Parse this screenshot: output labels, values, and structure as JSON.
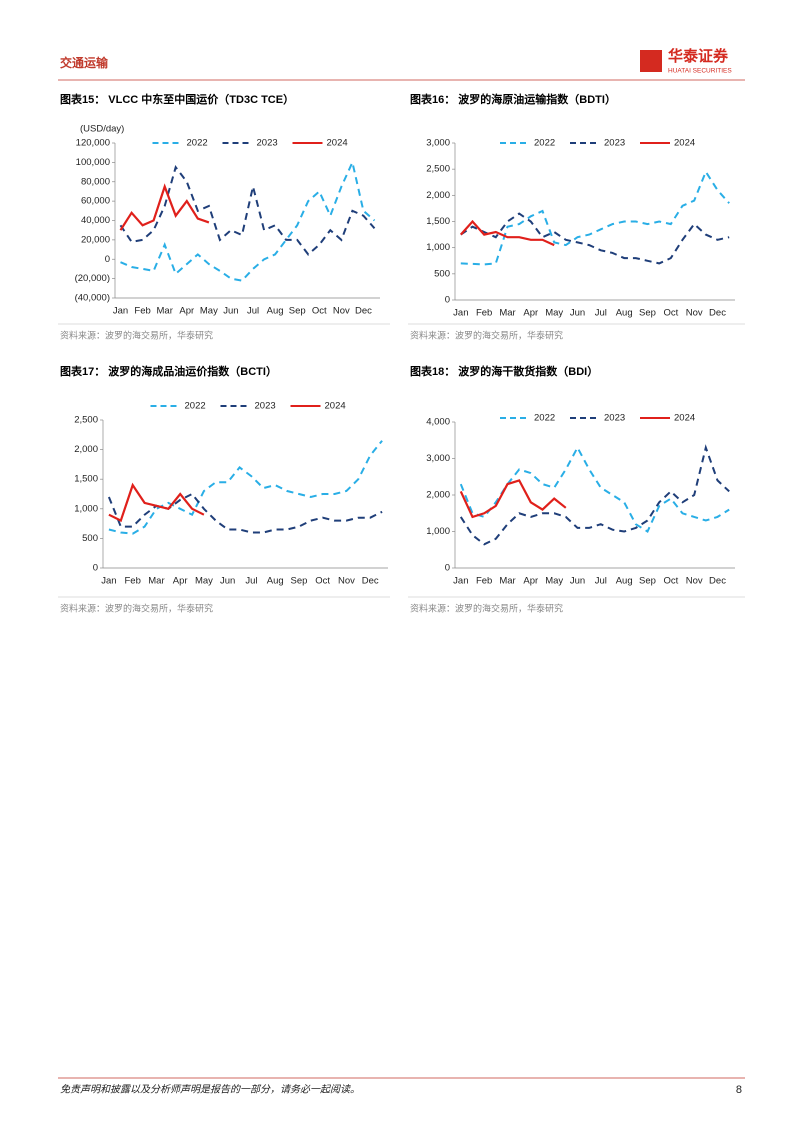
{
  "header": {
    "section": "交通运输",
    "logo": "华泰证券",
    "logo_en": "HUATAI SECURITIES"
  },
  "charts": [
    {
      "type": "line",
      "title": "图表15：  VLCC 中东至中国运价（TD3C TCE）",
      "y_unit": "(USD/day)",
      "source": "资料来源：波罗的海交易所，华泰研究",
      "categories": [
        "Jan",
        null,
        "Feb",
        null,
        "Mar",
        null,
        "Apr",
        null,
        "May",
        null,
        "Jun",
        null,
        "Jul",
        null,
        "Aug",
        null,
        "Sep",
        null,
        "Oct",
        null,
        "Nov",
        null,
        "Dec",
        null
      ],
      "ylim": [
        -40000,
        120000
      ],
      "yticks": [
        {
          "value": -40000,
          "label": "(40,000)"
        },
        {
          "value": -20000,
          "label": "(20,000)"
        },
        0,
        {
          "value": 20000,
          "label": "20,000"
        },
        {
          "value": 40000,
          "label": "40,000"
        },
        {
          "value": 60000,
          "label": "60,000"
        },
        {
          "value": 80000,
          "label": "80,000"
        },
        {
          "value": 100000,
          "label": "100,000"
        },
        {
          "value": 120000,
          "label": "120,000"
        }
      ],
      "series": [
        {
          "name": "2022",
          "color": "#29aee6",
          "dashed": true,
          "values": [
            -3000,
            -8000,
            -10000,
            -12000,
            15000,
            -15000,
            -5000,
            5000,
            -5000,
            -12000,
            -20000,
            -22000,
            -10000,
            0,
            5000,
            20000,
            35000,
            60000,
            70000,
            45000,
            75000,
            100000,
            50000,
            40000
          ]
        },
        {
          "name": "2023",
          "color": "#1f3e79",
          "dashed": true,
          "values": [
            35000,
            18000,
            20000,
            30000,
            55000,
            95000,
            80000,
            50000,
            55000,
            20000,
            30000,
            25000,
            75000,
            30000,
            35000,
            20000,
            20000,
            5000,
            15000,
            30000,
            20000,
            50000,
            45000,
            32000
          ]
        },
        {
          "name": "2024",
          "color": "#e0201b",
          "dashed": false,
          "values": [
            30000,
            48000,
            35000,
            40000,
            75000,
            45000,
            60000,
            42000,
            38000,
            null,
            null,
            null,
            null,
            null,
            null,
            null,
            null,
            null,
            null,
            null,
            null,
            null,
            null,
            null
          ]
        }
      ]
    },
    {
      "type": "line",
      "title": "图表16：  波罗的海原油运输指数（BDTI）",
      "source": "资料来源：波罗的海交易所，华泰研究",
      "categories": [
        "Jan",
        null,
        "Feb",
        null,
        "Mar",
        null,
        "Apr",
        null,
        "May",
        null,
        "Jun",
        null,
        "Jul",
        null,
        "Aug",
        null,
        "Sep",
        null,
        "Oct",
        null,
        "Nov",
        null,
        "Dec",
        null
      ],
      "ylim": [
        0,
        3000
      ],
      "yticks": [
        0,
        500,
        {
          "value": 1000,
          "label": "1,000"
        },
        {
          "value": 1500,
          "label": "1,500"
        },
        {
          "value": 2000,
          "label": "2,000"
        },
        {
          "value": 2500,
          "label": "2,500"
        },
        {
          "value": 3000,
          "label": "3,000"
        }
      ],
      "series": [
        {
          "name": "2022",
          "color": "#29aee6",
          "dashed": true,
          "values": [
            700,
            690,
            680,
            700,
            1400,
            1450,
            1600,
            1700,
            1100,
            1050,
            1200,
            1250,
            1350,
            1450,
            1500,
            1500,
            1450,
            1500,
            1450,
            1800,
            1900,
            2450,
            2100,
            1850
          ]
        },
        {
          "name": "2023",
          "color": "#1f3e79",
          "dashed": true,
          "values": [
            1250,
            1400,
            1300,
            1200,
            1500,
            1650,
            1500,
            1200,
            1300,
            1150,
            1100,
            1050,
            950,
            900,
            800,
            800,
            750,
            700,
            800,
            1150,
            1450,
            1250,
            1150,
            1200
          ]
        },
        {
          "name": "2024",
          "color": "#e0201b",
          "dashed": false,
          "values": [
            1250,
            1500,
            1250,
            1300,
            1200,
            1200,
            1150,
            1150,
            1050,
            null,
            null,
            null,
            null,
            null,
            null,
            null,
            null,
            null,
            null,
            null,
            null,
            null,
            null,
            null
          ]
        }
      ]
    },
    {
      "type": "line",
      "title": "图表17：  波罗的海成品油运价指数（BCTI）",
      "source": "资料来源：波罗的海交易所，华泰研究",
      "categories": [
        "Jan",
        null,
        "Feb",
        null,
        "Mar",
        null,
        "Apr",
        null,
        "May",
        null,
        "Jun",
        null,
        "Jul",
        null,
        "Aug",
        null,
        "Sep",
        null,
        "Oct",
        null,
        "Nov",
        null,
        "Dec",
        null
      ],
      "ylim": [
        0,
        2500
      ],
      "yticks": [
        0,
        500,
        {
          "value": 1000,
          "label": "1,000"
        },
        {
          "value": 1500,
          "label": "1,500"
        },
        {
          "value": 2000,
          "label": "2,000"
        },
        {
          "value": 2500,
          "label": "2,500"
        }
      ],
      "series": [
        {
          "name": "2022",
          "color": "#29aee6",
          "dashed": true,
          "values": [
            650,
            600,
            580,
            700,
            1000,
            1100,
            1000,
            900,
            1300,
            1450,
            1450,
            1700,
            1550,
            1350,
            1400,
            1300,
            1250,
            1200,
            1250,
            1250,
            1300,
            1500,
            1900,
            2150
          ]
        },
        {
          "name": "2023",
          "color": "#1f3e79",
          "dashed": true,
          "values": [
            1200,
            700,
            700,
            900,
            1050,
            1000,
            1150,
            1250,
            1000,
            800,
            650,
            650,
            600,
            600,
            650,
            650,
            700,
            800,
            850,
            800,
            800,
            850,
            850,
            950
          ]
        },
        {
          "name": "2024",
          "color": "#e0201b",
          "dashed": false,
          "values": [
            900,
            800,
            1400,
            1100,
            1050,
            1000,
            1250,
            1000,
            900,
            null,
            null,
            null,
            null,
            null,
            null,
            null,
            null,
            null,
            null,
            null,
            null,
            null,
            null,
            null
          ]
        }
      ]
    },
    {
      "type": "line",
      "title": "图表18：  波罗的海干散货指数（BDI）",
      "source": "资料来源：波罗的海交易所，华泰研究",
      "categories": [
        "Jan",
        null,
        "Feb",
        null,
        "Mar",
        null,
        "Apr",
        null,
        "May",
        null,
        "Jun",
        null,
        "Jul",
        null,
        "Aug",
        null,
        "Sep",
        null,
        "Oct",
        null,
        "Nov",
        null,
        "Dec",
        null
      ],
      "ylim": [
        0,
        4000
      ],
      "yticks": [
        0,
        {
          "value": 1000,
          "label": "1,000"
        },
        {
          "value": 2000,
          "label": "2,000"
        },
        {
          "value": 3000,
          "label": "3,000"
        },
        {
          "value": 4000,
          "label": "4,000"
        }
      ],
      "series": [
        {
          "name": "2022",
          "color": "#29aee6",
          "dashed": true,
          "values": [
            2300,
            1500,
            1400,
            1800,
            2300,
            2700,
            2600,
            2300,
            2200,
            2700,
            3300,
            2700,
            2200,
            2000,
            1800,
            1200,
            1000,
            1700,
            1900,
            1500,
            1400,
            1300,
            1400,
            1600
          ]
        },
        {
          "name": "2023",
          "color": "#1f3e79",
          "dashed": true,
          "values": [
            1400,
            900,
            650,
            800,
            1200,
            1500,
            1400,
            1500,
            1500,
            1400,
            1100,
            1100,
            1200,
            1050,
            1000,
            1100,
            1300,
            1800,
            2100,
            1800,
            2000,
            3300,
            2400,
            2100
          ]
        },
        {
          "name": "2024",
          "color": "#e0201b",
          "dashed": false,
          "values": [
            2100,
            1400,
            1500,
            1700,
            2300,
            2400,
            1800,
            1600,
            1900,
            1650,
            null,
            null,
            null,
            null,
            null,
            null,
            null,
            null,
            null,
            null,
            null,
            null,
            null,
            null
          ]
        }
      ]
    }
  ],
  "footer": {
    "disclaimer": "免责声明和披露以及分析师声明是报告的一部分，请务必一起阅读。",
    "page": "8"
  }
}
